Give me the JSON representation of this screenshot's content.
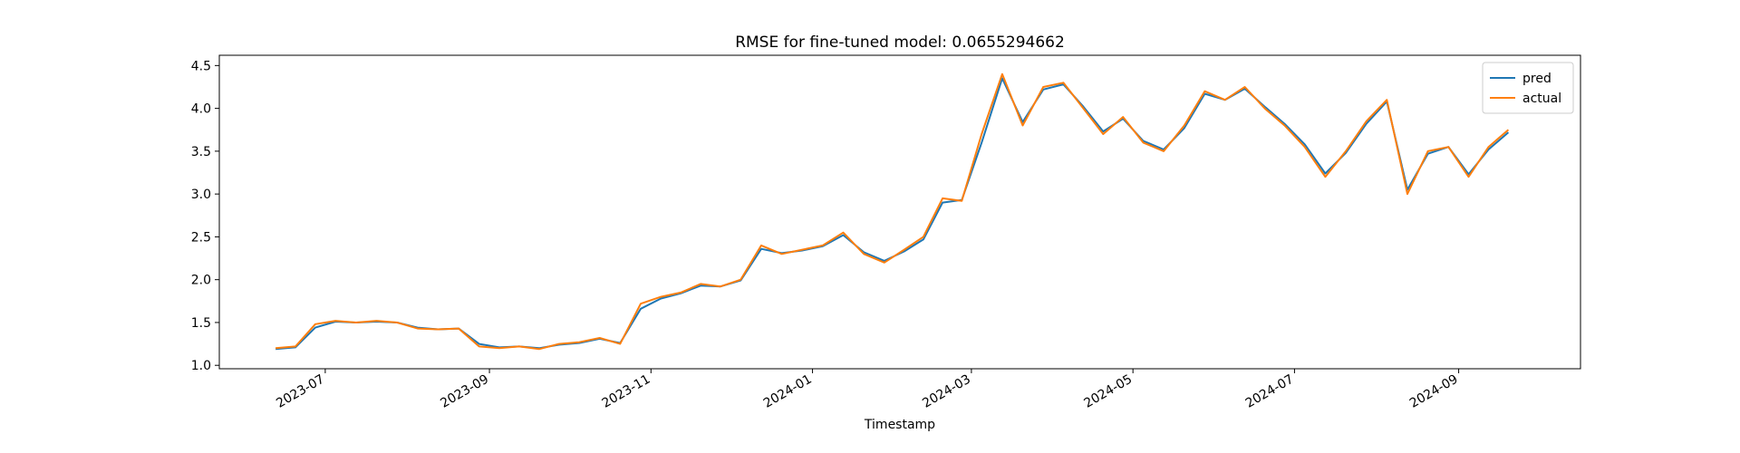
{
  "chart_data": {
    "type": "line",
    "title": "RMSE for fine-tuned model: 0.0655294662",
    "x_label": "Timestamp",
    "x": [
      "2023-06",
      "2023-06",
      "2023-06",
      "2023-07",
      "2023-07",
      "2023-07",
      "2023-07",
      "2023-08",
      "2023-08",
      "2023-08",
      "2023-08",
      "2023-09",
      "2023-09",
      "2023-09",
      "2023-09",
      "2023-10",
      "2023-10",
      "2023-10",
      "2023-10",
      "2023-11",
      "2023-11",
      "2023-11",
      "2023-11",
      "2023-12",
      "2023-12",
      "2023-12",
      "2023-12",
      "2024-01",
      "2024-01",
      "2024-01",
      "2024-01",
      "2024-02",
      "2024-02",
      "2024-02",
      "2024-02",
      "2024-03",
      "2024-03",
      "2024-03",
      "2024-03",
      "2024-04",
      "2024-04",
      "2024-04",
      "2024-04",
      "2024-05",
      "2024-05",
      "2024-05",
      "2024-05",
      "2024-06",
      "2024-06",
      "2024-06",
      "2024-06",
      "2024-07",
      "2024-07",
      "2024-07",
      "2024-07",
      "2024-08",
      "2024-08",
      "2024-08",
      "2024-08",
      "2024-09",
      "2024-09",
      "2024-09"
    ],
    "series": [
      {
        "name": "pred",
        "color": "#1f77b4",
        "values": [
          1.19,
          1.21,
          1.44,
          1.51,
          1.5,
          1.51,
          1.5,
          1.44,
          1.42,
          1.43,
          1.25,
          1.21,
          1.22,
          1.2,
          1.24,
          1.26,
          1.31,
          1.26,
          1.66,
          1.78,
          1.84,
          1.93,
          1.92,
          1.99,
          2.36,
          2.31,
          2.34,
          2.39,
          2.52,
          2.32,
          2.22,
          2.33,
          2.47,
          2.9,
          2.93,
          3.6,
          4.35,
          3.84,
          4.22,
          4.28,
          4.02,
          3.73,
          3.88,
          3.62,
          3.52,
          3.77,
          4.17,
          4.1,
          4.23,
          4.02,
          3.82,
          3.58,
          3.24,
          3.48,
          3.82,
          4.08,
          3.05,
          3.47,
          3.55,
          3.23,
          3.52,
          3.72
        ]
      },
      {
        "name": "actual",
        "color": "#ff7f0e",
        "values": [
          1.2,
          1.22,
          1.48,
          1.52,
          1.5,
          1.52,
          1.5,
          1.43,
          1.42,
          1.43,
          1.22,
          1.2,
          1.22,
          1.19,
          1.25,
          1.27,
          1.32,
          1.25,
          1.72,
          1.8,
          1.85,
          1.95,
          1.92,
          2.0,
          2.4,
          2.3,
          2.35,
          2.4,
          2.55,
          2.3,
          2.2,
          2.35,
          2.5,
          2.95,
          2.92,
          3.7,
          4.4,
          3.8,
          4.25,
          4.3,
          4.0,
          3.7,
          3.9,
          3.6,
          3.5,
          3.8,
          4.2,
          4.1,
          4.25,
          4.0,
          3.8,
          3.55,
          3.2,
          3.5,
          3.85,
          4.1,
          3.0,
          3.5,
          3.55,
          3.2,
          3.55,
          3.75
        ]
      }
    ],
    "xlim": [
      "2023-05-22",
      "2024-10-17"
    ],
    "xticks": [
      "2023-07",
      "2023-09",
      "2023-11",
      "2024-01",
      "2024-03",
      "2024-05",
      "2024-07",
      "2024-09"
    ],
    "ylim": [
      0.96,
      4.62
    ],
    "yticks": [
      {
        "value": 1,
        "label": "1.0"
      },
      1.5,
      {
        "value": 2,
        "label": "2.0"
      },
      2.5,
      {
        "value": 3,
        "label": "3.0"
      },
      3.5,
      {
        "value": 4,
        "label": "4.0"
      },
      4.5
    ],
    "grid": false,
    "legend": "upper right"
  }
}
